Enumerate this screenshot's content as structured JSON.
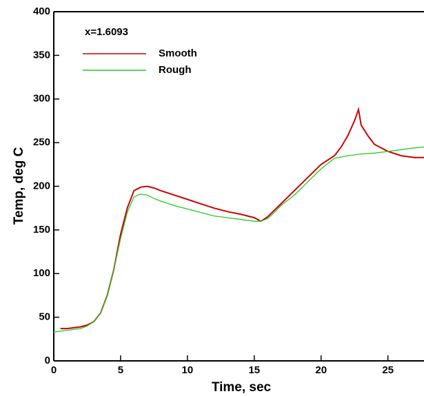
{
  "chart_data": {
    "type": "line",
    "annotation": "x=1.6093",
    "xlabel": "Time, sec",
    "ylabel": "Temp, deg C",
    "xlim": [
      0,
      27.7
    ],
    "ylim": [
      0,
      400
    ],
    "xticks": [
      0,
      5,
      10,
      15,
      20,
      25
    ],
    "yticks": [
      0,
      50,
      100,
      150,
      200,
      250,
      300,
      350,
      400
    ],
    "series": [
      {
        "name": "Smooth",
        "color": "#cc0000",
        "x": [
          0.5,
          1,
          2,
          2.5,
          3,
          3.5,
          4,
          4.5,
          5,
          5.5,
          6,
          6.5,
          7,
          7.5,
          8,
          9,
          10,
          11,
          12,
          13,
          14,
          15,
          15.5,
          16,
          17,
          18,
          19,
          20,
          21,
          21.5,
          22,
          22.5,
          22.8,
          23,
          23.5,
          24,
          25,
          26,
          27,
          27.7
        ],
        "values": [
          37,
          37,
          39,
          41,
          45,
          55,
          75,
          105,
          145,
          175,
          195,
          199,
          200,
          198,
          195,
          190,
          185,
          180,
          175,
          171,
          168,
          164,
          160,
          165,
          180,
          195,
          210,
          225,
          235,
          245,
          258,
          275,
          288,
          270,
          258,
          248,
          240,
          235,
          233,
          233
        ]
      },
      {
        "name": "Rough",
        "color": "#22cc22",
        "x": [
          0,
          1,
          2,
          2.5,
          3,
          3.5,
          4,
          4.5,
          5,
          5.5,
          6,
          6.5,
          7,
          7.5,
          8,
          9,
          10,
          11,
          12,
          13,
          14,
          15,
          15.5,
          16,
          16.5,
          17,
          18,
          19,
          20,
          21,
          22,
          23,
          24,
          25,
          26,
          27,
          27.7
        ],
        "values": [
          33,
          35,
          37,
          40,
          45,
          55,
          75,
          105,
          140,
          170,
          188,
          191,
          190,
          186,
          183,
          178,
          174,
          170,
          166,
          164,
          162,
          160,
          160,
          163,
          170,
          178,
          190,
          205,
          220,
          232,
          235,
          237,
          238,
          240,
          242,
          244,
          245
        ]
      }
    ]
  }
}
